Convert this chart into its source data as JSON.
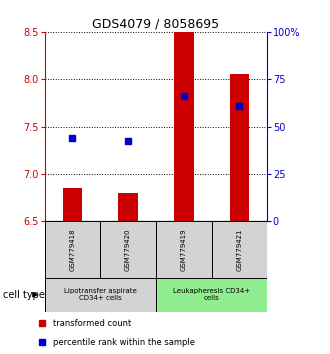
{
  "title": "GDS4079 / 8058695",
  "samples": [
    "GSM779418",
    "GSM779420",
    "GSM779419",
    "GSM779421"
  ],
  "red_values": [
    6.85,
    6.8,
    8.5,
    8.05
  ],
  "blue_values": [
    7.38,
    7.35,
    7.82,
    7.72
  ],
  "ylim": [
    6.5,
    8.5
  ],
  "yticks_left": [
    6.5,
    7.0,
    7.5,
    8.0,
    8.5
  ],
  "yticks_right": [
    0,
    25,
    50,
    75,
    100
  ],
  "ytick_labels_right": [
    "0",
    "25",
    "50",
    "75",
    "100%"
  ],
  "bar_bottom": 6.5,
  "bar_width": 0.35,
  "blue_marker_size": 4,
  "cell_groups": [
    {
      "label": "Lipotransfer aspirate\nCD34+ cells",
      "indices": [
        0,
        1
      ],
      "color": "#d3d3d3"
    },
    {
      "label": "Leukapheresis CD34+\ncells",
      "indices": [
        2,
        3
      ],
      "color": "#90ee90"
    }
  ],
  "cell_type_label": "cell type",
  "legend_red": "transformed count",
  "legend_blue": "percentile rank within the sample",
  "red_color": "#cc0000",
  "blue_color": "#0000cc",
  "title_fontsize": 9,
  "tick_fontsize": 7,
  "sample_fontsize": 5,
  "group_fontsize": 5,
  "legend_fontsize": 6,
  "celltype_fontsize": 7
}
